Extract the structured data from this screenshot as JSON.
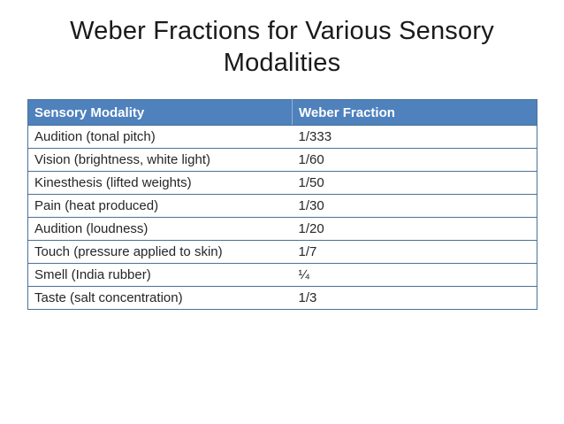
{
  "slide": {
    "title": "Weber Fractions for Various Sensory Modalities"
  },
  "table": {
    "columns": [
      "Sensory Modality",
      "Weber Fraction"
    ],
    "rows": [
      {
        "modality": "Audition (tonal pitch)",
        "fraction": "1/333"
      },
      {
        "modality": "Vision (brightness, white light)",
        "fraction": "1/60"
      },
      {
        "modality": "Kinesthesis (lifted weights)",
        "fraction": "1/50"
      },
      {
        "modality": "Pain (heat produced)",
        "fraction": "1/30"
      },
      {
        "modality": "Audition (loudness)",
        "fraction": "1/20"
      },
      {
        "modality": "Touch (pressure applied to skin)",
        "fraction": "1/7"
      },
      {
        "modality": "Smell (India rubber)",
        "fraction": "¼"
      },
      {
        "modality": "Taste (salt concentration)",
        "fraction": "1/3"
      }
    ]
  },
  "theme": {
    "header_fill": "#4F81BD",
    "header_text": "#FFFFFF",
    "border_color": "#4A7296",
    "header_divider": "#93B2D8",
    "title_color": "#1A1A1A",
    "body_text": "#262626",
    "background": "#FFFFFF"
  }
}
